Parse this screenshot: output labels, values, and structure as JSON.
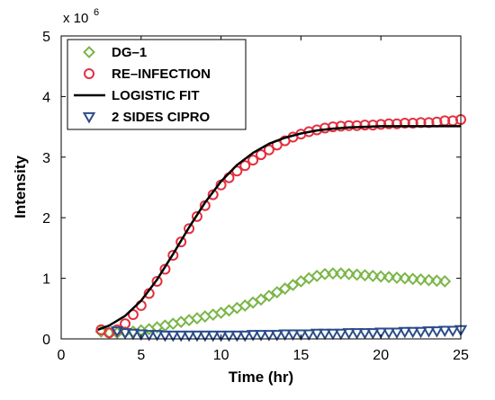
{
  "chart_data": {
    "type": "scatter",
    "title": "",
    "xlabel": "Time (hr)",
    "ylabel": "Intensity",
    "xlim": [
      0,
      25
    ],
    "ylim": [
      0,
      5
    ],
    "x_ticks": [
      0,
      5,
      10,
      15,
      20,
      25
    ],
    "y_ticks": [
      0,
      1,
      2,
      3,
      4,
      5
    ],
    "y_exponent_label": "x 10",
    "y_exponent_power": "6",
    "y_multiplier": 1000000,
    "grid": false,
    "legend_position": "top-left",
    "series": [
      {
        "name": "DG–1",
        "marker": "diamond",
        "color": "#7ab648",
        "x": [
          2.5,
          3.0,
          3.5,
          4.0,
          4.5,
          5.0,
          5.5,
          6.0,
          6.5,
          7.0,
          7.5,
          8.0,
          8.5,
          9.0,
          9.5,
          10.0,
          10.5,
          11.0,
          11.5,
          12.0,
          12.5,
          13.0,
          13.5,
          14.0,
          14.5,
          15.0,
          15.5,
          16.0,
          16.5,
          17.0,
          17.5,
          18.0,
          18.5,
          19.0,
          19.5,
          20.0,
          20.5,
          21.0,
          21.5,
          22.0,
          22.5,
          23.0,
          23.5,
          24.0
        ],
        "y": [
          0.12,
          0.1,
          0.1,
          0.11,
          0.12,
          0.14,
          0.16,
          0.19,
          0.22,
          0.25,
          0.28,
          0.31,
          0.34,
          0.37,
          0.4,
          0.43,
          0.47,
          0.51,
          0.55,
          0.6,
          0.65,
          0.71,
          0.77,
          0.83,
          0.89,
          0.95,
          1.0,
          1.04,
          1.07,
          1.08,
          1.08,
          1.07,
          1.06,
          1.05,
          1.04,
          1.03,
          1.02,
          1.01,
          1.0,
          0.99,
          0.98,
          0.97,
          0.96,
          0.95
        ]
      },
      {
        "name": "RE–INFECTION",
        "marker": "circle",
        "color": "#e3303f",
        "x": [
          2.5,
          3.0,
          3.5,
          4.0,
          4.5,
          5.0,
          5.5,
          6.0,
          6.5,
          7.0,
          7.5,
          8.0,
          8.5,
          9.0,
          9.5,
          10.0,
          10.5,
          11.0,
          11.5,
          12.0,
          12.5,
          13.0,
          13.5,
          14.0,
          14.5,
          15.0,
          15.5,
          16.0,
          16.5,
          17.0,
          17.5,
          18.0,
          18.5,
          19.0,
          19.5,
          20.0,
          20.5,
          21.0,
          21.5,
          22.0,
          22.5,
          23.0,
          23.5,
          24.0,
          24.5,
          25.0
        ],
        "y": [
          0.15,
          0.1,
          0.15,
          0.25,
          0.4,
          0.55,
          0.75,
          0.95,
          1.15,
          1.38,
          1.6,
          1.82,
          2.02,
          2.2,
          2.38,
          2.54,
          2.66,
          2.77,
          2.86,
          2.95,
          3.04,
          3.12,
          3.2,
          3.27,
          3.33,
          3.38,
          3.42,
          3.45,
          3.48,
          3.5,
          3.51,
          3.52,
          3.52,
          3.53,
          3.53,
          3.54,
          3.55,
          3.55,
          3.56,
          3.56,
          3.57,
          3.57,
          3.58,
          3.6,
          3.6,
          3.62
        ]
      },
      {
        "name": "LOGISTIC FIT",
        "marker": "line",
        "color": "#000000",
        "x": [
          2.3,
          3.0,
          4.0,
          5.0,
          6.0,
          7.0,
          8.0,
          9.0,
          10.0,
          11.0,
          12.0,
          13.0,
          14.0,
          15.0,
          16.0,
          17.0,
          18.0,
          19.0,
          20.0,
          21.0,
          22.0,
          23.0,
          24.0,
          25.0
        ],
        "y": [
          0.15,
          0.22,
          0.38,
          0.63,
          0.98,
          1.4,
          1.84,
          2.25,
          2.6,
          2.87,
          3.07,
          3.22,
          3.32,
          3.39,
          3.44,
          3.47,
          3.49,
          3.5,
          3.51,
          3.51,
          3.51,
          3.51,
          3.51,
          3.51
        ]
      },
      {
        "name": "2 SIDES CIPRO",
        "marker": "triangle-down",
        "color": "#2b4c8c",
        "x": [
          3.5,
          4.0,
          4.5,
          5.0,
          5.5,
          6.0,
          6.5,
          7.0,
          7.5,
          8.0,
          8.5,
          9.0,
          9.5,
          10.0,
          10.5,
          11.0,
          11.5,
          12.0,
          12.5,
          13.0,
          13.5,
          14.0,
          14.5,
          15.0,
          15.5,
          16.0,
          16.5,
          17.0,
          17.5,
          18.0,
          18.5,
          19.0,
          19.5,
          20.0,
          20.5,
          21.0,
          21.5,
          22.0,
          22.5,
          23.0,
          23.5,
          24.0,
          24.5,
          25.0
        ],
        "y": [
          0.13,
          0.1,
          0.09,
          0.08,
          0.07,
          0.07,
          0.06,
          0.06,
          0.06,
          0.06,
          0.06,
          0.06,
          0.06,
          0.06,
          0.06,
          0.06,
          0.06,
          0.07,
          0.07,
          0.07,
          0.07,
          0.08,
          0.08,
          0.08,
          0.08,
          0.09,
          0.09,
          0.09,
          0.09,
          0.1,
          0.1,
          0.1,
          0.1,
          0.11,
          0.11,
          0.11,
          0.12,
          0.12,
          0.12,
          0.13,
          0.13,
          0.14,
          0.14,
          0.15
        ]
      }
    ]
  }
}
